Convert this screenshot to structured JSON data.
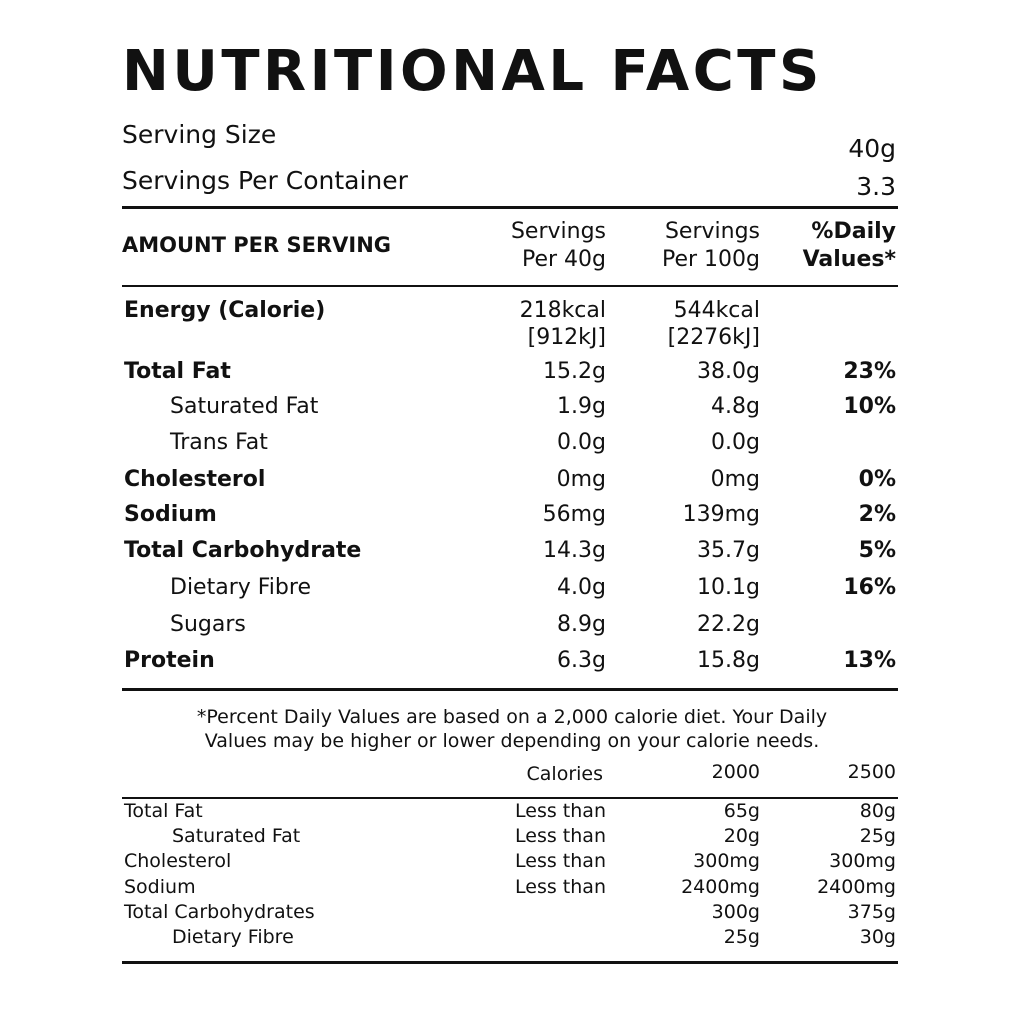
{
  "title": "NUTRITIONAL FACTS",
  "serving": [
    {
      "label": "Serving Size",
      "value": "40g"
    },
    {
      "label": "Servings Per Container",
      "value": "3.3"
    }
  ],
  "table": {
    "headers": [
      [
        "AMOUNT PER SERVING"
      ],
      [
        "Servings",
        "Per 40g"
      ],
      [
        "Servings",
        "Per 100g"
      ],
      [
        "%Daily",
        "Values*"
      ]
    ],
    "rows": [
      {
        "name": "Energy (Calorie)",
        "indent": false,
        "values": [
          [
            "218kcal",
            "[912kJ]"
          ],
          [
            "544kcal",
            "[2276kJ]"
          ]
        ]
      },
      {
        "name": "Total Fat",
        "indent": false,
        "values": [
          "15.2g",
          "38.0g",
          "23%"
        ]
      },
      {
        "name": "Saturated Fat",
        "indent": true,
        "values": [
          "1.9g",
          "4.8g",
          "10%"
        ]
      },
      {
        "name": "Trans Fat",
        "indent": true,
        "values": [
          "0.0g",
          "0.0g"
        ]
      },
      {
        "name": "Cholesterol",
        "indent": false,
        "values": [
          "0mg",
          "0mg",
          "0%"
        ]
      },
      {
        "name": "Sodium",
        "indent": false,
        "values": [
          "56mg",
          "139mg",
          "2%"
        ]
      },
      {
        "name": "Total Carbohydrate",
        "indent": false,
        "values": [
          "14.3g",
          "35.7g",
          "5%"
        ]
      },
      {
        "name": "Dietary Fibre",
        "indent": true,
        "values": [
          "4.0g",
          "10.1g",
          "16%"
        ]
      },
      {
        "name": "Sugars",
        "indent": true,
        "values": [
          "8.9g",
          "22.2g"
        ]
      },
      {
        "name": "Protein",
        "indent": false,
        "values": [
          "6.3g",
          "15.8g",
          "13%"
        ]
      }
    ]
  },
  "footnote": [
    "*Percent Daily Values are based on a 2,000 calorie diet. Your Daily",
    "Values may be higher or lower depending on your calorie needs."
  ],
  "reference": {
    "headers": [
      "Calories",
      "2000",
      "2500"
    ],
    "rows": [
      {
        "name": "Total Fat",
        "indent": false,
        "limit": "Less than",
        "values": [
          "65g",
          "80g"
        ]
      },
      {
        "name": "Saturated Fat",
        "indent": true,
        "limit": "Less than",
        "values": [
          "20g",
          "25g"
        ]
      },
      {
        "name": "Cholesterol",
        "indent": false,
        "limit": "Less than",
        "values": [
          "300mg",
          "300mg"
        ]
      },
      {
        "name": "Sodium",
        "indent": false,
        "limit": "Less than",
        "values": [
          "2400mg",
          "2400mg"
        ]
      },
      {
        "name": "Total Carbohydrates",
        "indent": false,
        "values": [
          "300g",
          "375g"
        ]
      },
      {
        "name": "Dietary Fibre",
        "indent": true,
        "values": [
          "25g",
          "30g"
        ]
      }
    ]
  }
}
